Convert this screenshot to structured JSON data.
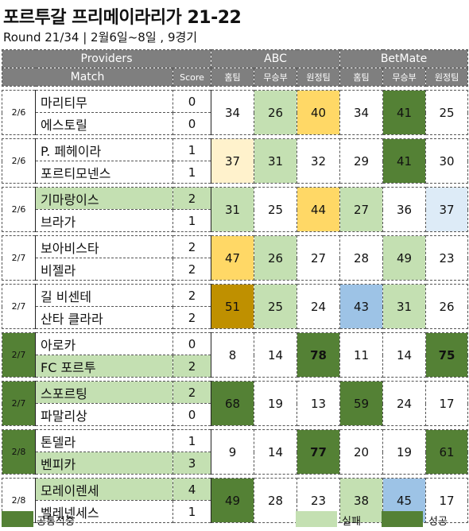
{
  "title": "포르투갈 프리메이라리가 21-22",
  "subtitle": "Round 21/34 | 2월6일~8일 , 9경기",
  "header": {
    "providers": "Providers",
    "abc": "ABC",
    "betmate": "BetMate",
    "match": "Match",
    "score": "Score",
    "cols": [
      "홈팀",
      "무승부",
      "원정팀",
      "홈팀",
      "무승부",
      "원정팀"
    ]
  },
  "colors": {
    "header": "#7f7f7f",
    "light_green": "#c4e0b2",
    "dark_green": "#548135",
    "yellow": "#ffd866",
    "pale_yellow": "#fff2cc",
    "gold": "#bf9000",
    "blue": "#9dc3e6",
    "pale_blue": "#ddebf7",
    "white": "#ffffff"
  },
  "matches": [
    {
      "date": "2/6",
      "home": "마리티무",
      "away": "에스토릴",
      "home_score": "0",
      "away_score": "0",
      "values": [
        "34",
        "26",
        "40",
        "34",
        "41",
        "25"
      ],
      "cell_colors": [
        "white",
        "light_green",
        "yellow",
        "white",
        "dark_green",
        "white"
      ],
      "home_bg": "white",
      "away_bg": "white",
      "date_bg": "white",
      "bold": [
        false,
        false,
        false,
        false,
        false,
        false
      ]
    },
    {
      "date": "2/6",
      "home": "P. 페헤이라",
      "away": "포르티모넨스",
      "home_score": "1",
      "away_score": "1",
      "values": [
        "37",
        "31",
        "32",
        "29",
        "41",
        "30"
      ],
      "cell_colors": [
        "pale_yellow",
        "light_green",
        "white",
        "white",
        "dark_green",
        "white"
      ],
      "home_bg": "white",
      "away_bg": "white",
      "date_bg": "white",
      "bold": [
        false,
        false,
        false,
        false,
        false,
        false
      ]
    },
    {
      "date": "2/6",
      "home": "기마랑이스",
      "away": "브라가",
      "home_score": "2",
      "away_score": "1",
      "values": [
        "31",
        "25",
        "44",
        "27",
        "36",
        "37"
      ],
      "cell_colors": [
        "light_green",
        "white",
        "yellow",
        "light_green",
        "white",
        "pale_blue"
      ],
      "home_bg": "light_green",
      "away_bg": "white",
      "date_bg": "white",
      "bold": [
        false,
        false,
        false,
        false,
        false,
        false
      ]
    },
    {
      "date": "2/7",
      "home": "보아비스타",
      "away": "비젤라",
      "home_score": "2",
      "away_score": "2",
      "values": [
        "47",
        "26",
        "27",
        "28",
        "49",
        "23"
      ],
      "cell_colors": [
        "yellow",
        "light_green",
        "white",
        "white",
        "light_green",
        "white"
      ],
      "home_bg": "white",
      "away_bg": "white",
      "date_bg": "white",
      "bold": [
        false,
        false,
        false,
        false,
        false,
        false
      ]
    },
    {
      "date": "2/7",
      "home": "길 비센테",
      "away": "산타 클라라",
      "home_score": "2",
      "away_score": "2",
      "values": [
        "51",
        "25",
        "24",
        "43",
        "31",
        "26"
      ],
      "cell_colors": [
        "gold",
        "light_green",
        "white",
        "blue",
        "light_green",
        "white"
      ],
      "home_bg": "white",
      "away_bg": "white",
      "date_bg": "white",
      "bold": [
        false,
        false,
        false,
        false,
        false,
        false
      ]
    },
    {
      "date": "2/7",
      "home": "아로카",
      "away": "FC 포르투",
      "home_score": "0",
      "away_score": "2",
      "values": [
        "8",
        "14",
        "78",
        "11",
        "14",
        "75"
      ],
      "cell_colors": [
        "white",
        "white",
        "dark_green",
        "white",
        "white",
        "dark_green"
      ],
      "home_bg": "white",
      "away_bg": "light_green",
      "date_bg": "dark_green",
      "bold": [
        false,
        false,
        true,
        false,
        false,
        true
      ]
    },
    {
      "date": "2/7",
      "home": "스포르팅",
      "away": "파말리상",
      "home_score": "2",
      "away_score": "0",
      "values": [
        "68",
        "19",
        "13",
        "59",
        "24",
        "17"
      ],
      "cell_colors": [
        "dark_green",
        "white",
        "white",
        "dark_green",
        "white",
        "white"
      ],
      "home_bg": "light_green",
      "away_bg": "white",
      "date_bg": "dark_green",
      "bold": [
        false,
        false,
        false,
        false,
        false,
        false
      ]
    },
    {
      "date": "2/8",
      "home": "톤델라",
      "away": "벤피카",
      "home_score": "1",
      "away_score": "3",
      "values": [
        "9",
        "14",
        "77",
        "20",
        "19",
        "61"
      ],
      "cell_colors": [
        "white",
        "white",
        "dark_green",
        "white",
        "white",
        "dark_green"
      ],
      "home_bg": "white",
      "away_bg": "light_green",
      "date_bg": "dark_green",
      "bold": [
        false,
        false,
        true,
        false,
        false,
        false
      ]
    },
    {
      "date": "2/8",
      "home": "모레이렌세",
      "away": "벨레넨세스",
      "home_score": "4",
      "away_score": "1",
      "values": [
        "49",
        "28",
        "23",
        "38",
        "45",
        "17"
      ],
      "cell_colors": [
        "dark_green",
        "white",
        "white",
        "light_green",
        "blue",
        "white"
      ],
      "home_bg": "light_green",
      "away_bg": "white",
      "date_bg": "white",
      "bold": [
        false,
        false,
        false,
        false,
        false,
        false
      ]
    }
  ],
  "legend": {
    "common": "공통적중",
    "fail": "실패",
    "success": "성공"
  }
}
